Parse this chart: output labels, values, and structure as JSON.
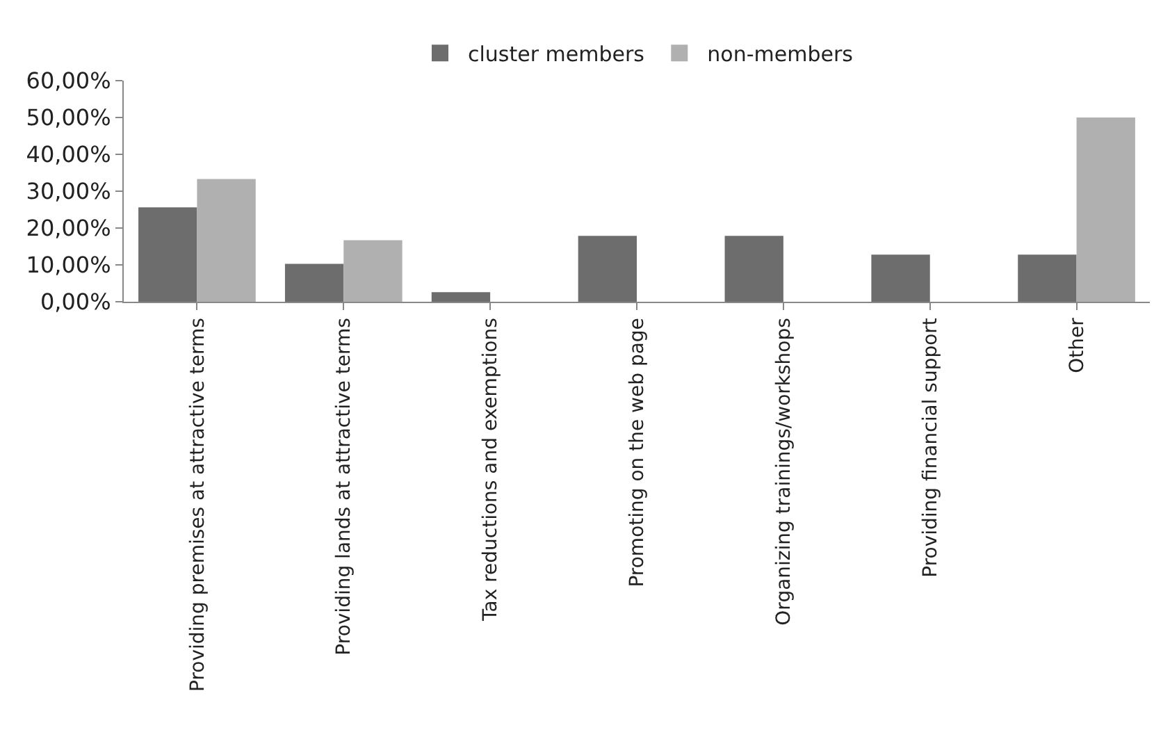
{
  "chart_data": {
    "type": "bar",
    "categories": [
      "Providing premises at attractive terms",
      "Providing lands at attractive terms",
      "Tax reductions and exemptions",
      "Promoting on the web page",
      "Organizing trainings/workshops",
      "Providing financial support",
      "Other"
    ],
    "series": [
      {
        "name": "cluster members",
        "color": "#6d6d6d",
        "values": [
          25.6,
          10.3,
          2.6,
          17.9,
          17.9,
          12.8,
          12.8
        ]
      },
      {
        "name": "non-members",
        "color": "#b0b0b0",
        "values": [
          33.3,
          16.7,
          0,
          0,
          0,
          0,
          50
        ]
      }
    ],
    "ylim": [
      0,
      60
    ],
    "yticks": [
      {
        "value": 0,
        "label": "0,00%"
      },
      {
        "value": 10,
        "label": "10,00%"
      },
      {
        "value": 20,
        "label": "20,00%"
      },
      {
        "value": 30,
        "label": "30,00%"
      },
      {
        "value": 40,
        "label": "40,00%"
      },
      {
        "value": 50,
        "label": "50,00%"
      },
      {
        "value": 60,
        "label": "60,00%"
      }
    ],
    "legend": "top"
  }
}
